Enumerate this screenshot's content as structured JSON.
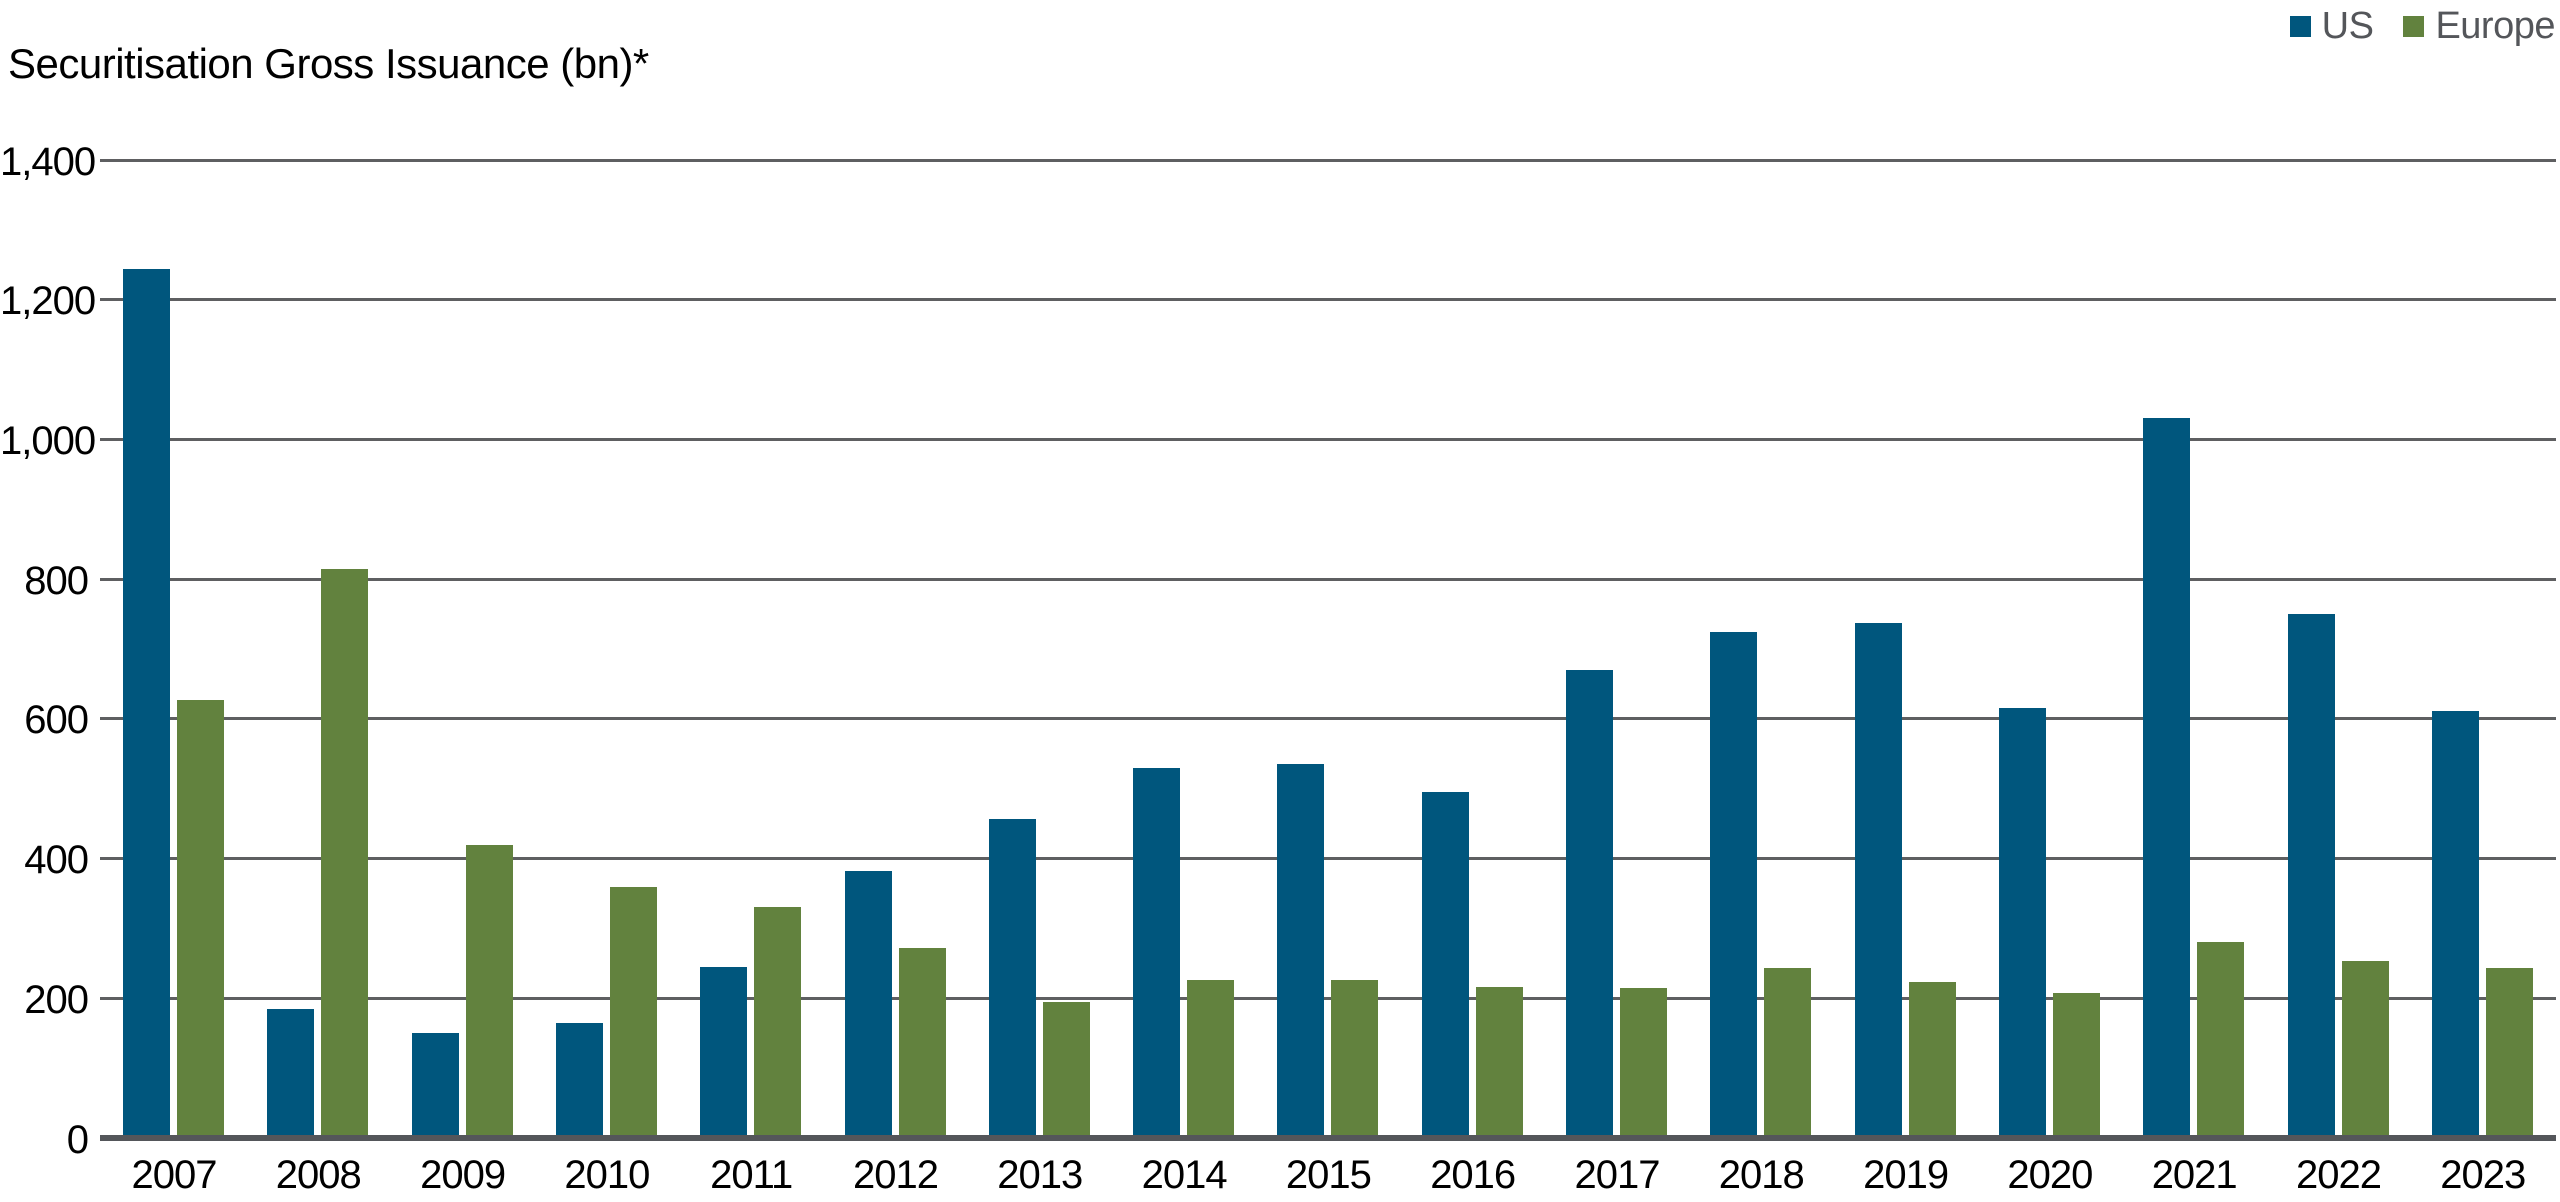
{
  "chart_data": {
    "type": "bar",
    "title": "Securitisation Gross Issuance (bn)*",
    "categories": [
      "2007",
      "2008",
      "2009",
      "2010",
      "2011",
      "2012",
      "2013",
      "2014",
      "2015",
      "2016",
      "2017",
      "2018",
      "2019",
      "2020",
      "2021",
      "2022",
      "2023"
    ],
    "series": [
      {
        "name": "US",
        "color": "#00567D",
        "values": [
          1244,
          185,
          150,
          164,
          245,
          382,
          457,
          530,
          536,
          496,
          670,
          724,
          737,
          615,
          1031,
          750,
          611
        ]
      },
      {
        "name": "Europe",
        "color": "#62823E",
        "values": [
          627,
          815,
          420,
          360,
          330,
          272,
          195,
          226,
          226,
          216,
          215,
          243,
          224,
          208,
          280,
          254,
          243
        ]
      }
    ],
    "ylim": [
      0,
      1400
    ],
    "ytick_step": 200,
    "yticks": [
      "0",
      "200",
      "400",
      "600",
      "800",
      "1,000",
      "1,200",
      "1,400"
    ],
    "xlabel": "",
    "ylabel": "",
    "grid": true,
    "legend_position": "top-right",
    "colors": {
      "gridline": "#5E5F61",
      "axis_line": "#54565A",
      "tick_label": "#000000",
      "title_text": "#000000",
      "legend_text": "#54565A",
      "background": "#FFFFFF"
    }
  }
}
